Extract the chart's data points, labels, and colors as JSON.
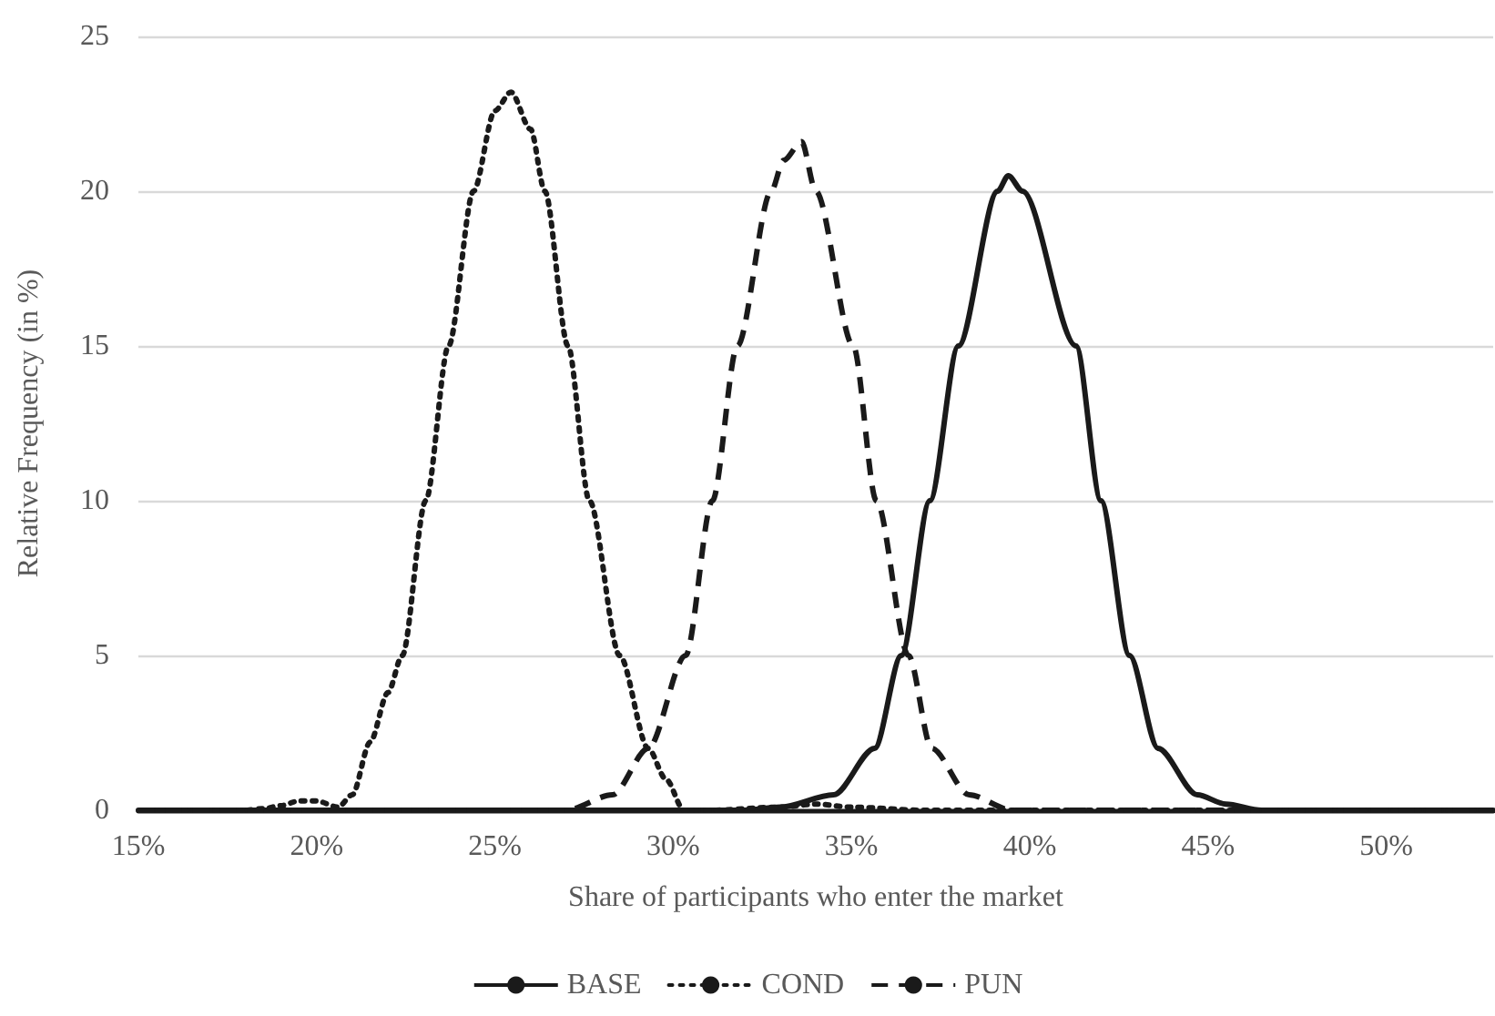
{
  "chart_data": {
    "type": "line",
    "xlabel": "Share of participants who enter the market",
    "ylabel": "Relative Frequency (in %)",
    "xlim": [
      15,
      53
    ],
    "xticks": [
      {
        "value": 15,
        "label": "15%"
      },
      {
        "value": 20,
        "label": "20%"
      },
      {
        "value": 25,
        "label": "25%"
      },
      {
        "value": 30,
        "label": "30%"
      },
      {
        "value": 35,
        "label": "35%"
      },
      {
        "value": 40,
        "label": "40%"
      },
      {
        "value": 45,
        "label": "45%"
      },
      {
        "value": 50,
        "label": "50%"
      }
    ],
    "ylim": [
      0,
      25
    ],
    "yticks": [
      0,
      5,
      10,
      15,
      20,
      25
    ],
    "grid": "y",
    "legend": "bottom",
    "marker": "none",
    "series": [
      {
        "name": "BASE",
        "color": "#1a1a1a",
        "line_style": "solid",
        "x": [
          15,
          32,
          33,
          34.5,
          35.65,
          36.4,
          37.2,
          38.0,
          39.1,
          39.4,
          39.8,
          41.3,
          42.0,
          42.8,
          43.6,
          44.7,
          45.5,
          46.5,
          53
        ],
        "values": [
          0,
          0,
          0.1,
          0.5,
          2,
          5,
          10,
          15,
          20,
          20.5,
          20,
          15,
          10,
          5,
          2,
          0.5,
          0.2,
          0,
          0
        ]
      },
      {
        "name": "COND",
        "color": "#1a1a1a",
        "line_style": "dotted",
        "x": [
          15,
          18,
          18.5,
          19,
          19.5,
          20,
          20.6,
          21,
          21.5,
          22,
          22.4,
          23.06,
          23.7,
          24.4,
          25,
          25.45,
          26,
          26.4,
          27.05,
          27.65,
          28.5,
          29.3,
          29.8,
          30.3,
          31,
          33,
          34,
          35,
          37,
          53
        ],
        "values": [
          0,
          0,
          0.05,
          0.15,
          0.3,
          0.3,
          0.1,
          0.5,
          2.2,
          3.8,
          5,
          10,
          15,
          20,
          22.6,
          23.2,
          22,
          20,
          15,
          10,
          5,
          2,
          1,
          0,
          0,
          0.1,
          0.2,
          0.1,
          0,
          0
        ]
      },
      {
        "name": "PUN",
        "color": "#1a1a1a",
        "line_style": "dashed",
        "x": [
          15,
          27,
          28.3,
          29.3,
          30.35,
          31.1,
          31.8,
          32.75,
          33.1,
          33.6,
          34.0,
          35.05,
          35.7,
          36.6,
          37.25,
          38.3,
          39.5,
          53
        ],
        "values": [
          0,
          0,
          0.5,
          2,
          5,
          10,
          15,
          20,
          21,
          21.6,
          20,
          15,
          10,
          5,
          2,
          0.5,
          0,
          0
        ]
      }
    ]
  }
}
